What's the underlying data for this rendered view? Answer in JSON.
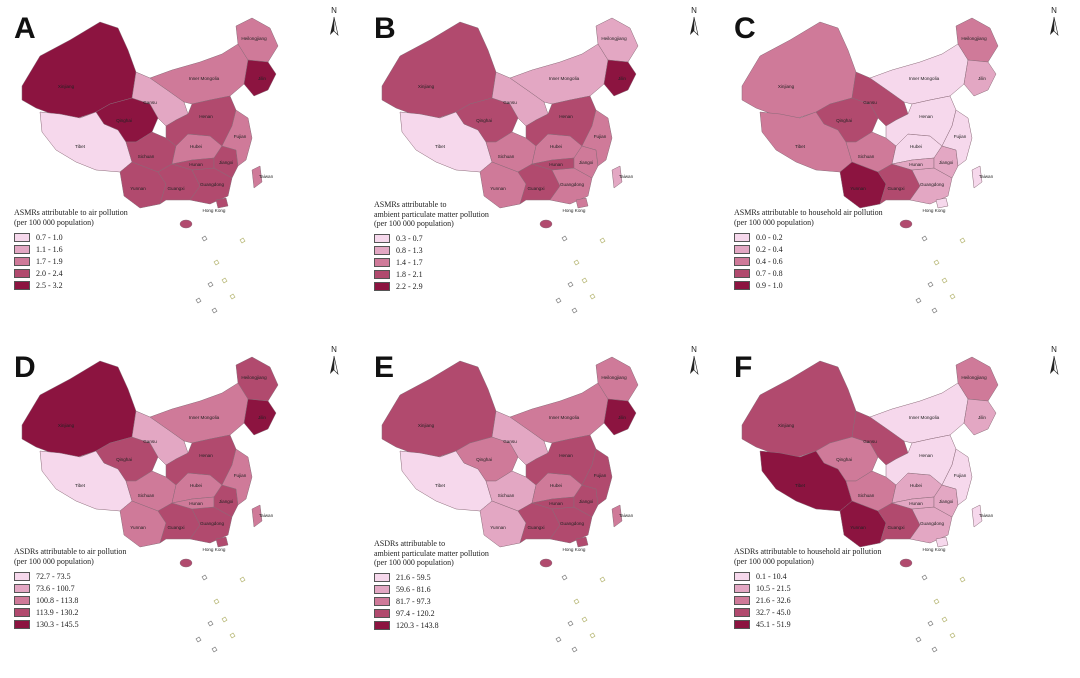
{
  "panels": [
    {
      "letter": "A",
      "title_lines": [
        "ASMRs attributable to air pollution",
        "(per 100 000 population)"
      ],
      "bins": [
        "0.7 - 1.0",
        "1.1 - 1.6",
        "1.7 - 1.9",
        "2.0 - 2.4",
        "2.5 - 3.2"
      ]
    },
    {
      "letter": "B",
      "title_lines": [
        "ASMRs attributable to",
        "ambient particulate matter pollution",
        "(per 100 000 population)"
      ],
      "bins": [
        "0.3 - 0.7",
        "0.8 - 1.3",
        "1.4 - 1.7",
        "1.8 - 2.1",
        "2.2 - 2.9"
      ]
    },
    {
      "letter": "C",
      "title_lines": [
        "ASMRs attributable to household air pollution",
        "(per 100 000 population)"
      ],
      "bins": [
        "0.0 - 0.2",
        "0.2 - 0.4",
        "0.4 - 0.6",
        "0.7 - 0.8",
        "0.9 - 1.0"
      ]
    },
    {
      "letter": "D",
      "title_lines": [
        "ASDRs attributable to air pollution",
        "(per 100 000 population)"
      ],
      "bins": [
        "72.7 - 73.5",
        "73.6 - 100.7",
        "100.8 - 113.8",
        "113.9 - 130.2",
        "130.3 - 145.5"
      ]
    },
    {
      "letter": "E",
      "title_lines": [
        "ASDRs attributable to",
        "ambient particulate matter pollution",
        "(per 100 000 population)"
      ],
      "bins": [
        "21.6 - 59.5",
        "59.6 - 81.6",
        "81.7 - 97.3",
        "97.4 - 120.2",
        "120.3 - 143.8"
      ]
    },
    {
      "letter": "F",
      "title_lines": [
        "ASDRs attributable to household air pollution",
        "(per 100 000 population)"
      ],
      "bins": [
        "0.1 - 10.4",
        "10.5 - 21.5",
        "21.6 - 32.6",
        "32.7 - 45.0",
        "45.1 - 51.9"
      ]
    }
  ],
  "colors": [
    "#f6d8ec",
    "#e3a7c3",
    "#cf7a99",
    "#b14a6e",
    "#8c1440"
  ],
  "compass_label": "N",
  "region_names": [
    "Xinjiang",
    "Tibet",
    "Qinghai",
    "Gansu",
    "Inner Mongolia",
    "Heilongjiang",
    "Jilin",
    "Sichuan",
    "Yunnan",
    "Guangxi",
    "Guangdong",
    "Hubei",
    "Hunan",
    "Henan",
    "Jiangxi",
    "Fujian",
    "Hong Kong",
    "Taiwan"
  ],
  "region_levels": [
    [
      5,
      1,
      5,
      2,
      3,
      3,
      5,
      4,
      4,
      4,
      4,
      3,
      4,
      4,
      4,
      3,
      4,
      3
    ],
    [
      4,
      1,
      4,
      2,
      2,
      2,
      5,
      3,
      3,
      4,
      3,
      3,
      4,
      4,
      3,
      3,
      3,
      2
    ],
    [
      3,
      3,
      4,
      4,
      1,
      3,
      2,
      3,
      5,
      4,
      2,
      1,
      2,
      1,
      2,
      1,
      1,
      1
    ],
    [
      5,
      1,
      4,
      2,
      3,
      4,
      5,
      3,
      3,
      4,
      4,
      3,
      3,
      4,
      4,
      3,
      4,
      3
    ],
    [
      4,
      1,
      3,
      2,
      3,
      3,
      5,
      2,
      2,
      4,
      4,
      3,
      4,
      4,
      4,
      4,
      4,
      3
    ],
    [
      4,
      5,
      3,
      4,
      1,
      3,
      2,
      3,
      5,
      4,
      2,
      2,
      2,
      1,
      2,
      1,
      1,
      1
    ]
  ]
}
